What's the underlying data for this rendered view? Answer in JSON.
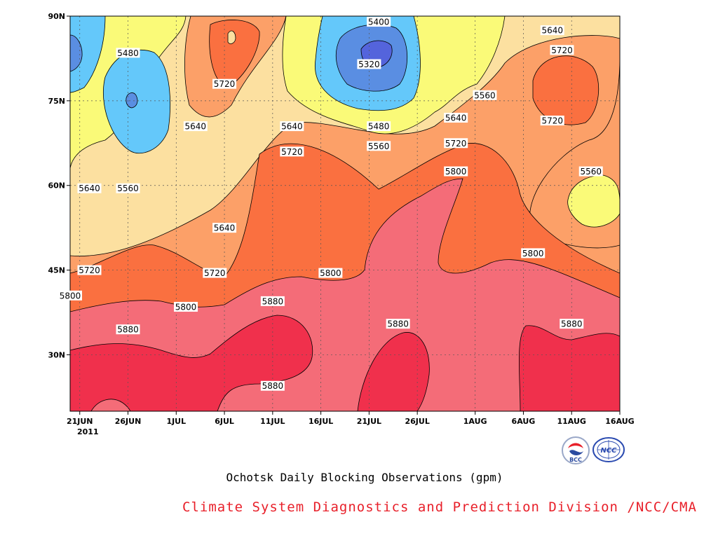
{
  "chart_data": {
    "type": "heatmap",
    "title": "Ochotsk Daily Blocking Observations (gpm)",
    "x_ticks": [
      "21JUN",
      "26JUN",
      "1JUL",
      "6JUL",
      "11JUL",
      "16JUL",
      "21JUL",
      "26JUL",
      "1AUG",
      "6AUG",
      "11AUG",
      "16AUG"
    ],
    "x_year": "2011",
    "y_ticks": [
      "30N",
      "45N",
      "60N",
      "75N",
      "90N"
    ],
    "xlim": [
      "2011-06-20",
      "2011-08-16"
    ],
    "ylim": [
      20,
      90
    ],
    "grid": true,
    "levels": [
      5320,
      5400,
      5480,
      5560,
      5640,
      5720,
      5800,
      5880
    ],
    "level_colors": [
      "#5464dc",
      "#5a8ee2",
      "#64c8fa",
      "#fafa78",
      "#fce0a0",
      "#fca068",
      "#fa7040",
      "#f46c78",
      "#f0304c"
    ],
    "contour_labels": [
      {
        "text": "5400",
        "date": "2011-07-22",
        "lat": 89
      },
      {
        "text": "5320",
        "date": "2011-07-21",
        "lat": 81.5
      },
      {
        "text": "5480",
        "date": "2011-06-26",
        "lat": 83.5
      },
      {
        "text": "5480",
        "date": "2011-07-22",
        "lat": 70.5
      },
      {
        "text": "5560",
        "date": "2011-07-22",
        "lat": 67
      },
      {
        "text": "5560",
        "date": "2011-08-02",
        "lat": 76
      },
      {
        "text": "5560",
        "date": "2011-06-26",
        "lat": 59.5
      },
      {
        "text": "5560",
        "date": "2011-08-13",
        "lat": 62.5
      },
      {
        "text": "5640",
        "date": "2011-08-09",
        "lat": 87.5
      },
      {
        "text": "5640",
        "date": "2011-06-22",
        "lat": 59.5
      },
      {
        "text": "5640",
        "date": "2011-07-03",
        "lat": 70.5
      },
      {
        "text": "5640",
        "date": "2011-07-13",
        "lat": 70.5
      },
      {
        "text": "5640",
        "date": "2011-07-30",
        "lat": 72
      },
      {
        "text": "5640",
        "date": "2011-07-06",
        "lat": 52.5
      },
      {
        "text": "5720",
        "date": "2011-08-10",
        "lat": 84
      },
      {
        "text": "5720",
        "date": "2011-07-06",
        "lat": 78
      },
      {
        "text": "5720",
        "date": "2011-07-13",
        "lat": 66
      },
      {
        "text": "5720",
        "date": "2011-07-30",
        "lat": 67.5
      },
      {
        "text": "5720",
        "date": "2011-08-09",
        "lat": 71.5
      },
      {
        "text": "5720",
        "date": "2011-06-22",
        "lat": 45
      },
      {
        "text": "5720",
        "date": "2011-07-05",
        "lat": 44.5
      },
      {
        "text": "5800",
        "date": "2011-07-30",
        "lat": 62.5
      },
      {
        "text": "5800",
        "date": "2011-08-07",
        "lat": 48
      },
      {
        "text": "5800",
        "date": "2011-07-17",
        "lat": 44.5
      },
      {
        "text": "5800",
        "date": "2011-06-20",
        "lat": 40.5
      },
      {
        "text": "5800",
        "date": "2011-07-02",
        "lat": 38.5
      },
      {
        "text": "5880",
        "date": "2011-07-11",
        "lat": 39.5
      },
      {
        "text": "5880",
        "date": "2011-06-26",
        "lat": 34.5
      },
      {
        "text": "5880",
        "date": "2011-07-24",
        "lat": 35.5
      },
      {
        "text": "5880",
        "date": "2011-08-11",
        "lat": 35.5
      },
      {
        "text": "5880",
        "date": "2011-07-11",
        "lat": 24.5
      }
    ]
  },
  "footer": {
    "credit": "Climate System Diagnostics and Prediction Division /NCC/CMA",
    "logo_left_text": "BCC",
    "logo_right_text": "NCC"
  }
}
